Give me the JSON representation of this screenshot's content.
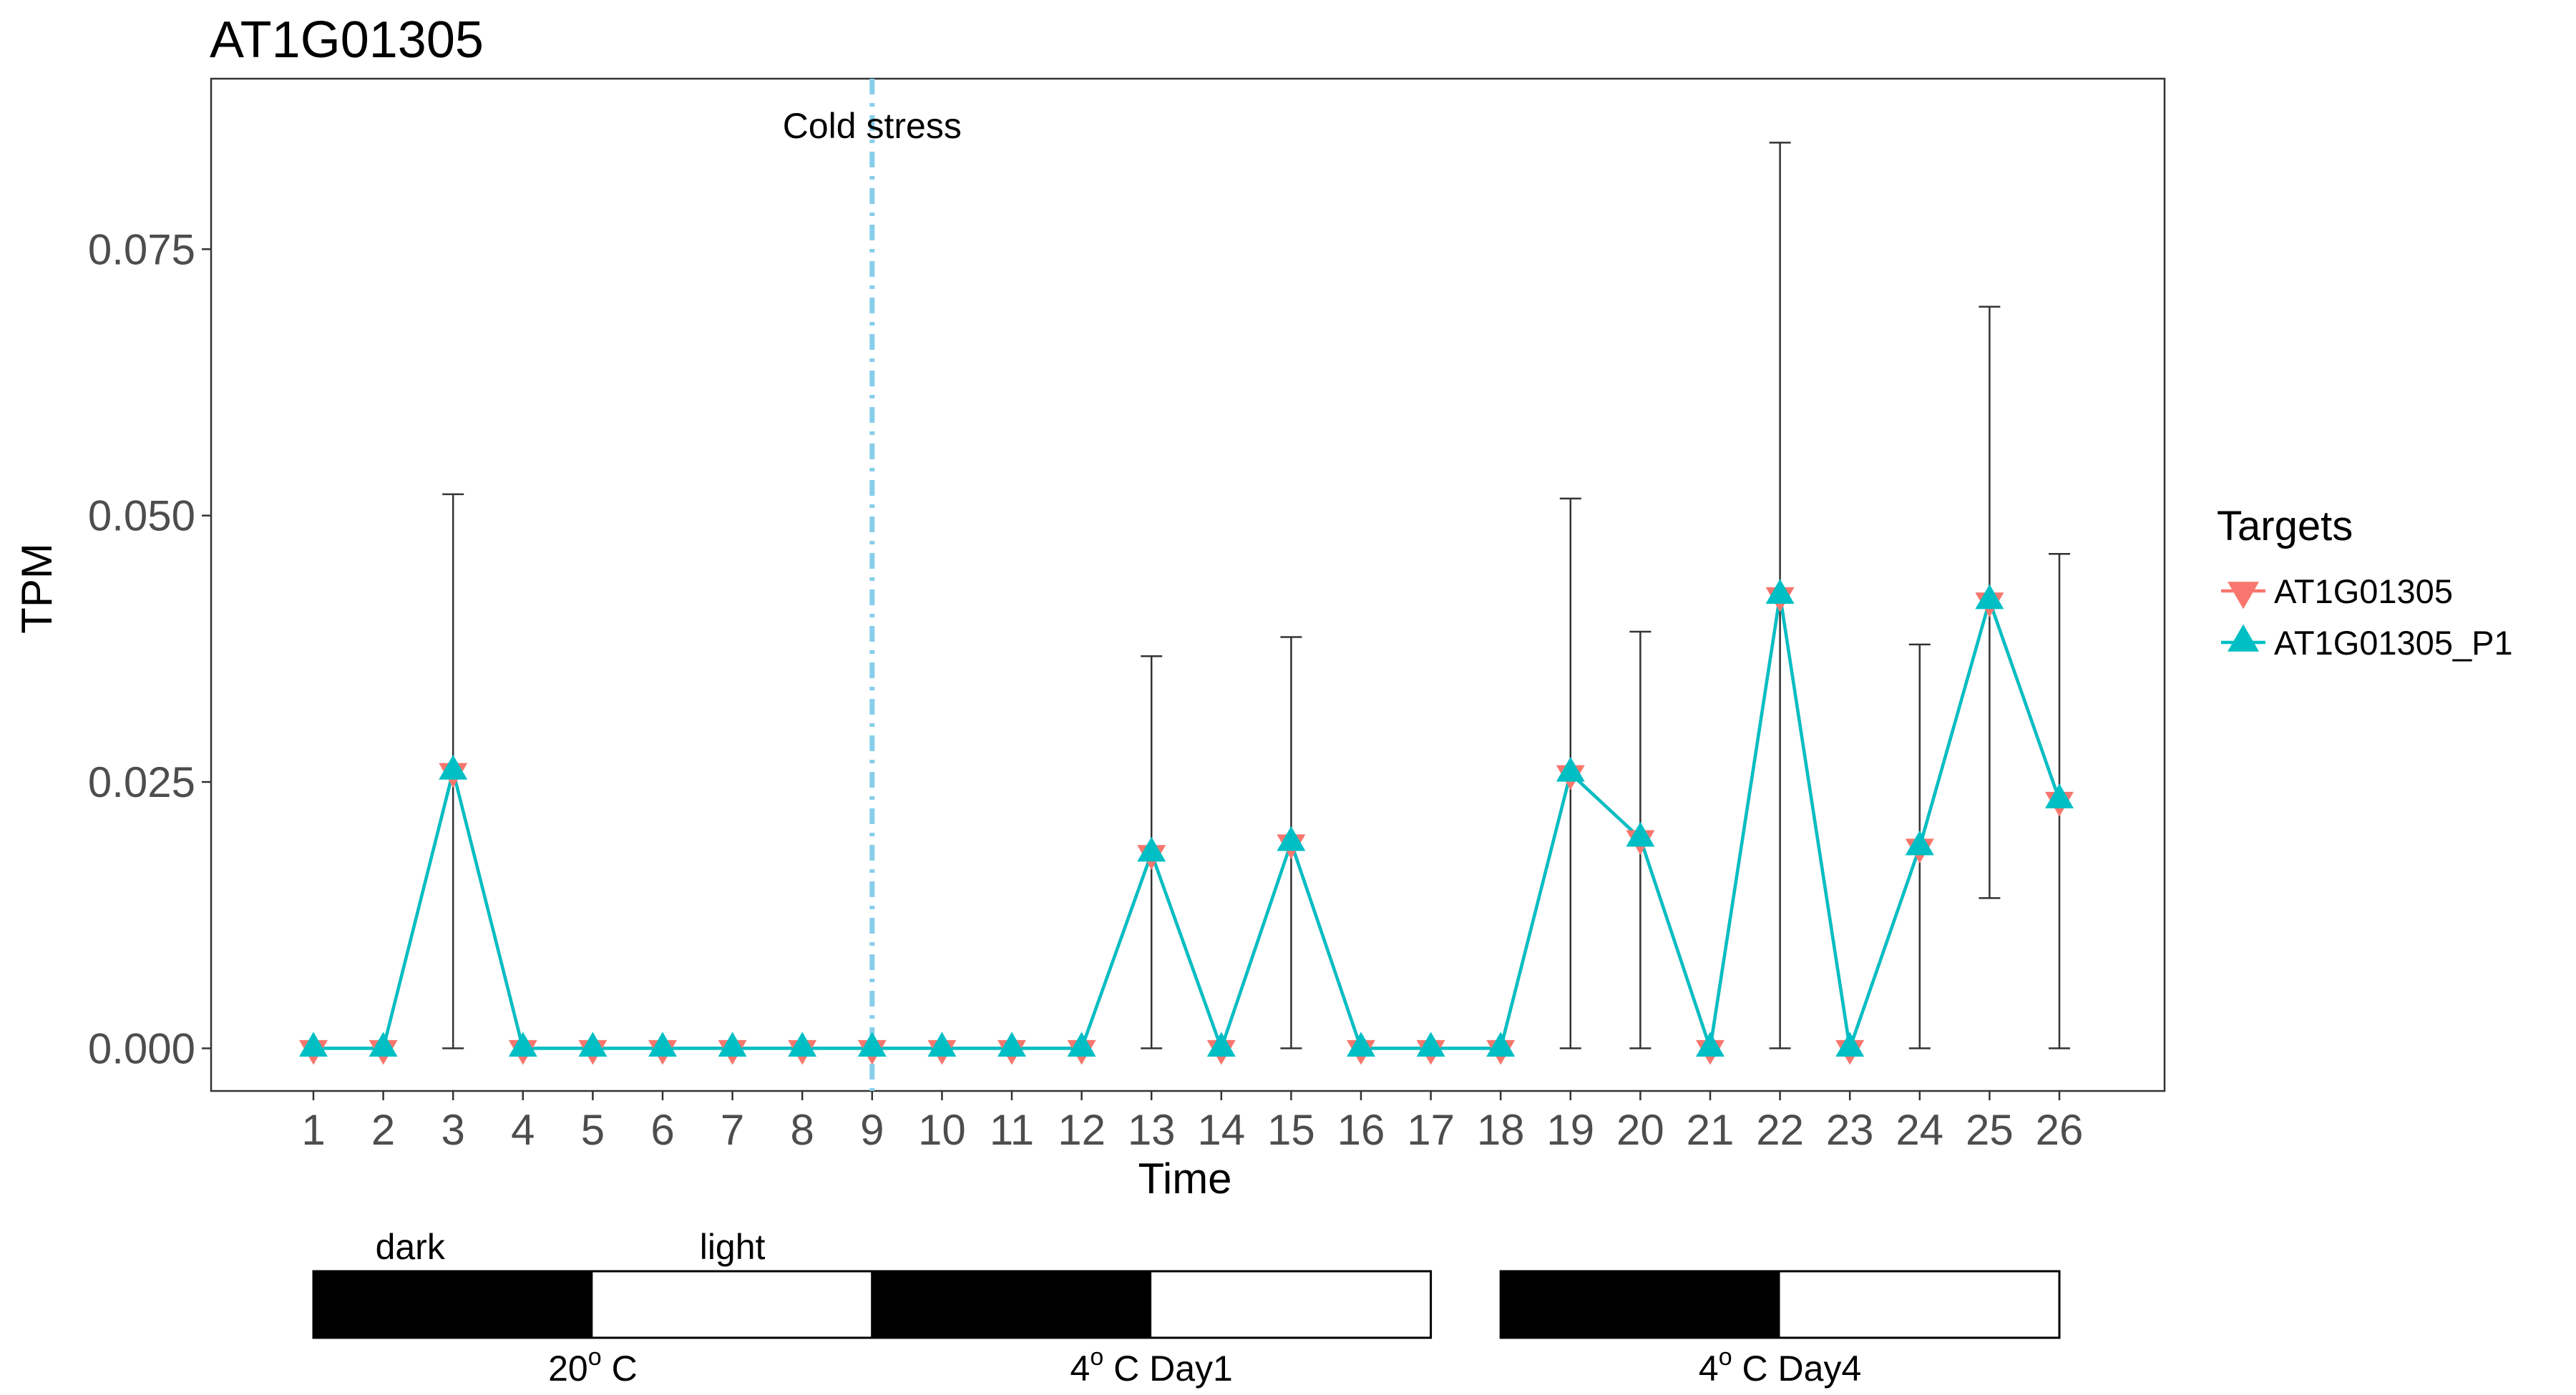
{
  "chart_data": {
    "type": "line",
    "title": "AT1G01305",
    "xlabel": "Time",
    "ylabel": "TPM",
    "x": [
      1,
      2,
      3,
      4,
      5,
      6,
      7,
      8,
      9,
      10,
      11,
      12,
      13,
      14,
      15,
      16,
      17,
      18,
      19,
      20,
      21,
      22,
      23,
      24,
      25,
      26
    ],
    "x_tick_labels": [
      "1",
      "2",
      "3",
      "4",
      "5",
      "6",
      "7",
      "8",
      "9",
      "10",
      "11",
      "12",
      "13",
      "14",
      "15",
      "16",
      "17",
      "18",
      "19",
      "20",
      "21",
      "22",
      "23",
      "24",
      "25",
      "26"
    ],
    "ylim": [
      -0.004,
      0.091
    ],
    "y_ticks": [
      0.0,
      0.025,
      0.05,
      0.075
    ],
    "y_tick_labels": [
      "0.000",
      "0.025",
      "0.050",
      "0.075"
    ],
    "grid": false,
    "legend": {
      "title": "Targets",
      "position": "right"
    },
    "series": [
      {
        "name": "AT1G01305",
        "color": "#F8766D",
        "marker": "triangle-down",
        "values": [
          0,
          0,
          0.026,
          0,
          0,
          0,
          0,
          0,
          0,
          0,
          0,
          0,
          0.0183,
          0,
          0.0193,
          0,
          0,
          0,
          0.0258,
          0.0197,
          0,
          0.0425,
          0,
          0.0189,
          0.042,
          0.0233
        ]
      },
      {
        "name": "AT1G01305_P1",
        "color": "#00BFC4",
        "marker": "triangle-up",
        "values": [
          0,
          0,
          0.026,
          0,
          0,
          0,
          0,
          0,
          0,
          0,
          0,
          0,
          0.0183,
          0,
          0.0193,
          0,
          0,
          0,
          0.0258,
          0.0197,
          0,
          0.0425,
          0,
          0.0189,
          0.042,
          0.0233
        ]
      }
    ],
    "error_bars": {
      "color": "#333333",
      "lower": [
        0,
        0,
        0,
        0,
        0,
        0,
        0,
        0,
        0,
        0,
        0,
        0,
        0,
        0,
        0,
        0,
        0,
        0,
        0,
        0,
        0,
        0,
        0,
        0,
        0.0141,
        0
      ],
      "upper": [
        0,
        0,
        0.052,
        0,
        0,
        0,
        0,
        0,
        0,
        0,
        0,
        0,
        0.0368,
        0,
        0.0386,
        0,
        0,
        0,
        0.0516,
        0.0391,
        0,
        0.085,
        0,
        0.0379,
        0.0696,
        0.0464
      ]
    },
    "annotations": [
      {
        "text": "Cold stress",
        "x": 9,
        "line_style": "dash-dot",
        "color": "#87CEEB"
      }
    ],
    "condition_bars": [
      {
        "segments": [
          {
            "from": 1,
            "to": 5,
            "fill": "#000000",
            "label": "dark"
          },
          {
            "from": 5,
            "to": 9,
            "fill": "#ffffff",
            "label": "light"
          }
        ],
        "label_main": "20",
        "label_sup": "o",
        "label_rest": "  C"
      },
      {
        "segments": [
          {
            "from": 9,
            "to": 13,
            "fill": "#000000",
            "label": ""
          },
          {
            "from": 13,
            "to": 17,
            "fill": "#ffffff",
            "label": ""
          }
        ],
        "label_main": "4",
        "label_sup": "o",
        "label_rest": " C  Day1"
      },
      {
        "segments": [
          {
            "from": 18,
            "to": 22,
            "fill": "#000000",
            "label": ""
          },
          {
            "from": 22,
            "to": 26,
            "fill": "#ffffff",
            "label": ""
          }
        ],
        "label_main": "4",
        "label_sup": "o",
        "label_rest": " C  Day4"
      }
    ]
  }
}
